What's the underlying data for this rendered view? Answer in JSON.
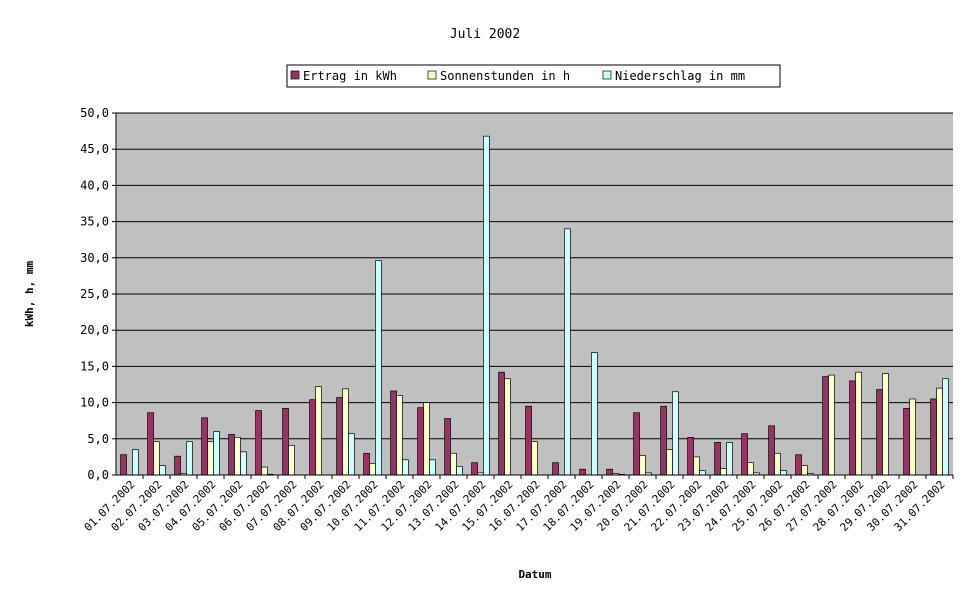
{
  "chart_data": {
    "type": "bar",
    "title": "Juli 2002",
    "xlabel": "Datum",
    "ylabel": "kWh, h, mm",
    "ylim": [
      0,
      50
    ],
    "ytick_step": 5,
    "ytick_labels": [
      "0,0",
      "5,0",
      "10,0",
      "15,0",
      "20,0",
      "25,0",
      "30,0",
      "35,0",
      "40,0",
      "45,0",
      "50,0"
    ],
    "grid": true,
    "legend_position": "top",
    "categories": [
      "01.07.2002",
      "02.07.2002",
      "03.07.2002",
      "04.07.2002",
      "05.07.2002",
      "06.07.2002",
      "07.07.2002",
      "08.07.2002",
      "09.07.2002",
      "10.07.2002",
      "11.07.2002",
      "12.07.2002",
      "13.07.2002",
      "14.07.2002",
      "15.07.2002",
      "16.07.2002",
      "17.07.2002",
      "18.07.2002",
      "19.07.2002",
      "20.07.2002",
      "21.07.2002",
      "22.07.2002",
      "23.07.2002",
      "24.07.2002",
      "25.07.2002",
      "26.07.2002",
      "27.07.2002",
      "28.07.2002",
      "29.07.2002",
      "30.07.2002",
      "31.07.2002"
    ],
    "series": [
      {
        "name": "Ertrag in kWh",
        "color": "#993366",
        "values": [
          2.8,
          8.6,
          2.6,
          7.9,
          5.6,
          8.9,
          9.2,
          10.4,
          10.7,
          3.0,
          11.6,
          9.3,
          7.8,
          1.7,
          14.2,
          9.5,
          1.7,
          0.8,
          0.8,
          8.6,
          9.5,
          5.2,
          4.5,
          5.7,
          6.8,
          2.8,
          13.6,
          13.0,
          11.8,
          9.2,
          10.5
        ]
      },
      {
        "name": "Sonnenstunden in h",
        "color": "#FFFFCC",
        "values": [
          0,
          4.6,
          0.2,
          4.6,
          5.2,
          1.1,
          4.1,
          12.2,
          11.9,
          1.6,
          11.0,
          10.0,
          3.0,
          0.3,
          13.3,
          4.6,
          0,
          0,
          0.2,
          2.7,
          3.5,
          2.5,
          0.9,
          1.7,
          3.0,
          1.3,
          13.8,
          14.2,
          14.0,
          10.5,
          12.0
        ]
      },
      {
        "name": "Niederschlag in mm",
        "color": "#CCFFFF",
        "values": [
          3.5,
          1.3,
          4.6,
          6.0,
          3.2,
          0.1,
          0,
          0,
          5.7,
          29.6,
          2.1,
          2.1,
          1.2,
          46.8,
          0,
          0,
          34.0,
          16.9,
          0.1,
          0.3,
          11.5,
          0.6,
          4.5,
          0.3,
          0.6,
          0.2,
          0,
          0,
          0,
          0,
          13.3
        ]
      }
    ]
  }
}
